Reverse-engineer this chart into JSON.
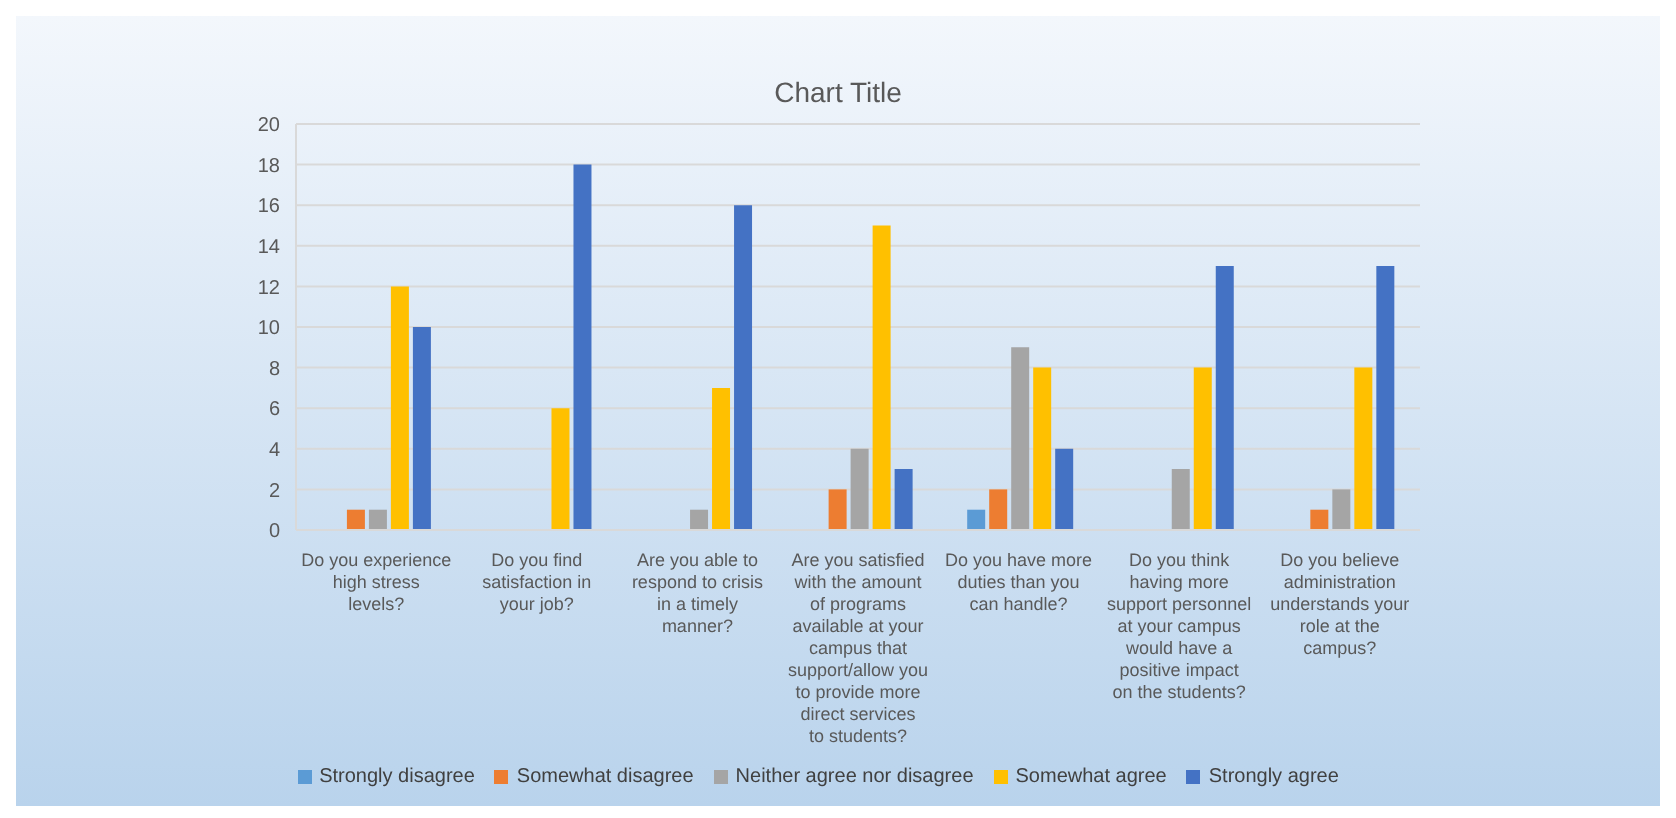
{
  "chart_data": {
    "type": "bar",
    "title": "Chart Title",
    "categories": [
      "Do you experience high stress levels?",
      "Do you find satisfaction in your job?",
      "Are you able to respond to crisis in a timely manner?",
      "Are you satisfied with the amount of programs available at your campus that support/allow you to provide more direct services to students?",
      "Do you have more duties than you can handle?",
      "Do you think having more support personnel at your campus would have a positive impact on the students?",
      "Do you believe administration understands your role at the campus?"
    ],
    "series": [
      {
        "name": "Strongly disagree",
        "color": "#5b9bd5",
        "values": [
          0,
          0,
          0,
          0,
          1,
          0,
          0
        ]
      },
      {
        "name": "Somewhat disagree",
        "color": "#ed7d31",
        "values": [
          1,
          0,
          0,
          2,
          2,
          0,
          1
        ]
      },
      {
        "name": "Neither agree nor disagree",
        "color": "#a5a5a5",
        "values": [
          1,
          0,
          1,
          4,
          9,
          3,
          2
        ]
      },
      {
        "name": "Somewhat agree",
        "color": "#ffc000",
        "values": [
          12,
          6,
          7,
          15,
          8,
          8,
          8
        ]
      },
      {
        "name": "Strongly agree",
        "color": "#4472c4",
        "values": [
          10,
          18,
          16,
          3,
          4,
          13,
          13
        ]
      }
    ],
    "ylim": [
      0,
      20
    ],
    "yticks": [
      0,
      2,
      4,
      6,
      8,
      10,
      12,
      14,
      16,
      18,
      20
    ],
    "grid": "y",
    "legend": "bottom"
  }
}
